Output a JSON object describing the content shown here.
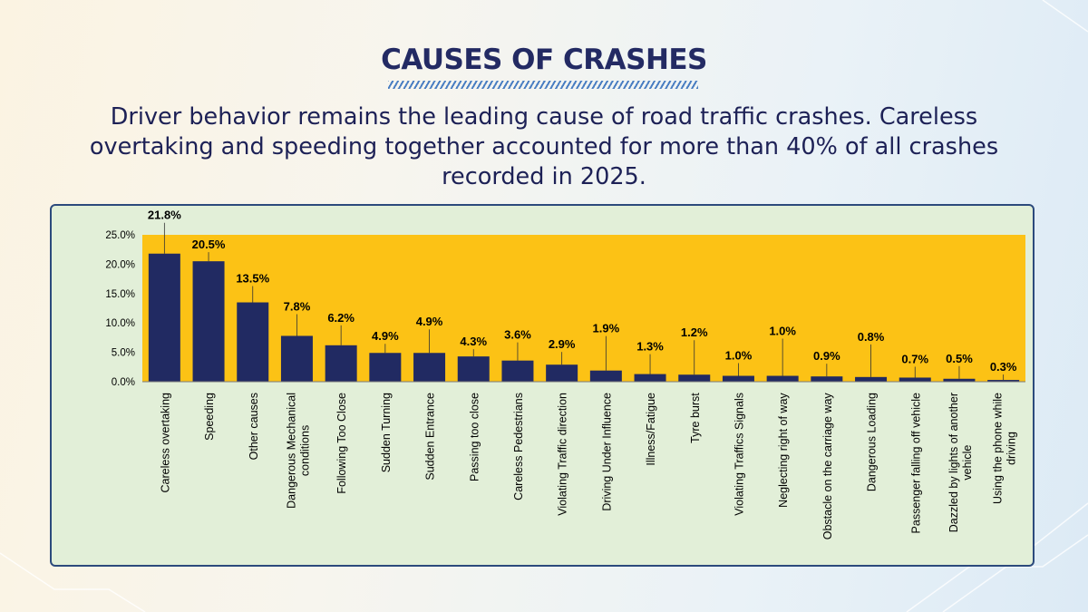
{
  "page": {
    "heading": "CAUSES OF CRASHES",
    "subtitle": "Driver behavior remains the leading cause of road traffic crashes. Careless overtaking and speeding together accounted for more than 40% of all crashes recorded in 2025."
  },
  "colors": {
    "plot_area": "#fcc215",
    "bar": "#212a62",
    "panel": "#e2efd8",
    "heading": "#232a63"
  },
  "chart_data": {
    "type": "bar",
    "title": "",
    "xlabel": "",
    "ylabel": "",
    "ylim": [
      0,
      25
    ],
    "yticks": [
      "0.0%",
      "5.0%",
      "10.0%",
      "15.0%",
      "20.0%",
      "25.0%"
    ],
    "categories": [
      "Careless overtaking",
      "Speeding",
      "Other causes",
      "Dangerous Mechanical conditions",
      "Following Too Close",
      "Sudden Turning",
      "Sudden Entrance",
      "Passing too close",
      "Careless Pedestrians",
      "Violating Traffic direction",
      "Driving Under Influence",
      "Illness/Fatigue",
      "Tyre burst",
      "Violating Traffics Signals",
      "Neglecting right of way",
      "Obstacle on the carriage way",
      "Dangerous Loading",
      "Passenger falling off vehicle",
      "Dazzled by lights of another vehicle",
      "Using the phone while driving"
    ],
    "values": [
      21.8,
      20.5,
      13.5,
      7.8,
      6.2,
      4.9,
      4.9,
      4.3,
      3.6,
      2.9,
      1.9,
      1.3,
      1.2,
      1.0,
      1.0,
      0.9,
      0.8,
      0.7,
      0.5,
      0.3
    ],
    "data_labels": [
      "21.8%",
      "20.5%",
      "13.5%",
      "7.8%",
      "6.2%",
      "4.9%",
      "4.9%",
      "4.3%",
      "3.6%",
      "2.9%",
      "1.9%",
      "1.3%",
      "1.2%",
      "1.0%",
      "1.0%",
      "0.9%",
      "0.8%",
      "0.7%",
      "0.5%",
      "0.3%"
    ],
    "category_label_lines": [
      [
        "Careless overtaking"
      ],
      [
        "Speeding"
      ],
      [
        "Other causes"
      ],
      [
        "Dangerous Mechanical",
        "conditions"
      ],
      [
        "Following Too Close"
      ],
      [
        "Sudden Turning"
      ],
      [
        "Sudden Entrance"
      ],
      [
        "Passing too close"
      ],
      [
        "Careless Pedestrians"
      ],
      [
        "Violating Traffic direction"
      ],
      [
        "Driving Under Influence"
      ],
      [
        "Illness/Fatigue"
      ],
      [
        "Tyre burst"
      ],
      [
        "Violating Traffics Signals"
      ],
      [
        "Neglecting right of way"
      ],
      [
        "Obstacle on the carriage way"
      ],
      [
        "Dangerous Loading"
      ],
      [
        "Passenger falling off vehicle"
      ],
      [
        "Dazzled by lights of another",
        "vehicle"
      ],
      [
        "Using the phone while",
        "driving"
      ]
    ]
  }
}
